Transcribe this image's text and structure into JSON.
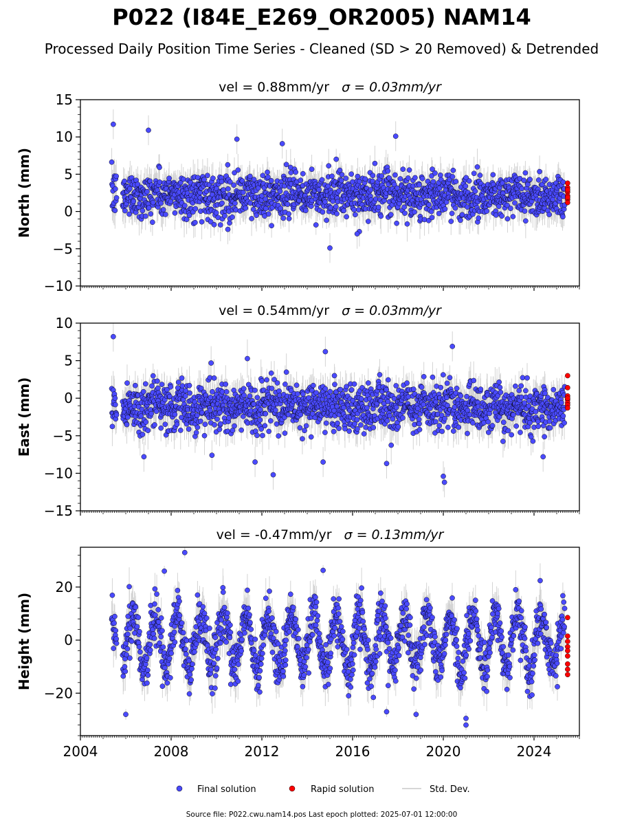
{
  "figure": {
    "title": "P022 (I84E_E269_OR2005) NAM14",
    "subtitle": "Processed Daily Position Time Series - Cleaned (SD > 20 Removed) & Detrended",
    "footer": "Source file: P022.cwu.nam14.pos  Last epoch plotted: 2025-07-01 12:00:00",
    "colors": {
      "final": "#4a4aff",
      "rapid": "#ff0000",
      "stddev": "#b0b0b0",
      "edge": "#000000"
    }
  },
  "legend": {
    "placement": "bottom-center",
    "final_label": "Final solution",
    "rapid_label": "Rapid solution",
    "std_label": "Std. Dev."
  },
  "chart_data": [
    {
      "type": "scatter",
      "title_vel": "vel = 0.88mm/yr",
      "title_sigma": "σ = 0.03mm/yr",
      "ylabel": "North (mm)",
      "ylim": [
        -10,
        15
      ],
      "yticks": [
        -10,
        -5,
        0,
        5,
        10,
        15
      ],
      "ytick_labels": [
        "−10",
        "−5",
        "0",
        "5",
        "10",
        "15"
      ],
      "xlim": [
        2004.0,
        2026.0
      ],
      "grid": false,
      "final_series": {
        "name": "Final solution",
        "start": 2005.38,
        "end": 2025.35,
        "mean": 2.2,
        "noise_sd": 1.5,
        "annual_amp": 0.3
      },
      "rapid_series": {
        "name": "Rapid solution",
        "x": 2025.42,
        "values": [
          3.8,
          3.2,
          2.6,
          2.1,
          1.6,
          1.2,
          2.9,
          1.9
        ]
      },
      "outliers": [
        {
          "x": 2005.45,
          "y": 11.7
        },
        {
          "x": 2007.0,
          "y": 10.9
        },
        {
          "x": 2010.9,
          "y": 9.7
        },
        {
          "x": 2012.9,
          "y": 9.1
        },
        {
          "x": 2017.9,
          "y": 10.1
        },
        {
          "x": 2015.0,
          "y": -4.9
        },
        {
          "x": 2016.3,
          "y": -2.7
        },
        {
          "x": 2010.5,
          "y": -2.4
        },
        {
          "x": 2016.2,
          "y": -3.0
        }
      ]
    },
    {
      "type": "scatter",
      "title_vel": "vel = 0.54mm/yr",
      "title_sigma": "σ = 0.03mm/yr",
      "ylabel": "East (mm)",
      "ylim": [
        -15,
        10
      ],
      "yticks": [
        -15,
        -10,
        -5,
        0,
        5,
        10
      ],
      "ytick_labels": [
        "−15",
        "−10",
        "−5",
        "0",
        "5",
        "10"
      ],
      "xlim": [
        2004.0,
        2026.0
      ],
      "grid": false,
      "final_series": {
        "name": "Final solution",
        "start": 2005.38,
        "end": 2025.35,
        "mean": -1.2,
        "noise_sd": 1.6,
        "annual_amp": 0.4
      },
      "rapid_series": {
        "name": "Rapid solution",
        "x": 2025.42,
        "values": [
          3.0,
          1.4,
          0.3,
          -0.2,
          -0.6,
          -0.9,
          -1.3,
          0.0
        ]
      },
      "outliers": [
        {
          "x": 2005.45,
          "y": 8.2
        },
        {
          "x": 2014.8,
          "y": 6.2
        },
        {
          "x": 2020.4,
          "y": 6.9
        },
        {
          "x": 2020.0,
          "y": -10.4
        },
        {
          "x": 2020.05,
          "y": -11.2
        },
        {
          "x": 2012.5,
          "y": -10.2
        },
        {
          "x": 2011.7,
          "y": -8.5
        },
        {
          "x": 2014.7,
          "y": -8.5
        },
        {
          "x": 2017.5,
          "y": -8.7
        },
        {
          "x": 2024.4,
          "y": -7.8
        },
        {
          "x": 2006.8,
          "y": -7.8
        },
        {
          "x": 2009.8,
          "y": -7.6
        }
      ]
    },
    {
      "type": "scatter",
      "title_vel": "vel = -0.47mm/yr",
      "title_sigma": "σ = 0.13mm/yr",
      "ylabel": "Height (mm)",
      "ylim": [
        -36,
        35
      ],
      "yticks": [
        -20,
        0,
        20
      ],
      "ytick_labels": [
        "−20",
        "0",
        "20"
      ],
      "xlim": [
        2004.0,
        2026.0
      ],
      "xticks": [
        2004,
        2008,
        2012,
        2016,
        2020,
        2024
      ],
      "xtick_labels": [
        "2004",
        "2008",
        "2012",
        "2016",
        "2020",
        "2024"
      ],
      "grid": false,
      "final_series": {
        "name": "Final solution",
        "start": 2005.38,
        "end": 2025.35,
        "mean": -0.5,
        "noise_sd": 4.5,
        "annual_amp": 10.0
      },
      "rapid_series": {
        "name": "Rapid solution",
        "x": 2025.42,
        "values": [
          8.5,
          1.5,
          -0.5,
          -2.5,
          -4.0,
          -6.0,
          -9.0,
          -11.0,
          -13.0
        ]
      },
      "outliers": [
        {
          "x": 2008.6,
          "y": 33.0
        },
        {
          "x": 2007.7,
          "y": 26.0
        },
        {
          "x": 2014.7,
          "y": 26.3
        },
        {
          "x": 2021.0,
          "y": -32.0
        },
        {
          "x": 2021.0,
          "y": -29.5
        },
        {
          "x": 2006.0,
          "y": -28.0
        },
        {
          "x": 2018.8,
          "y": -28.0
        },
        {
          "x": 2017.5,
          "y": -27.0
        }
      ]
    }
  ]
}
